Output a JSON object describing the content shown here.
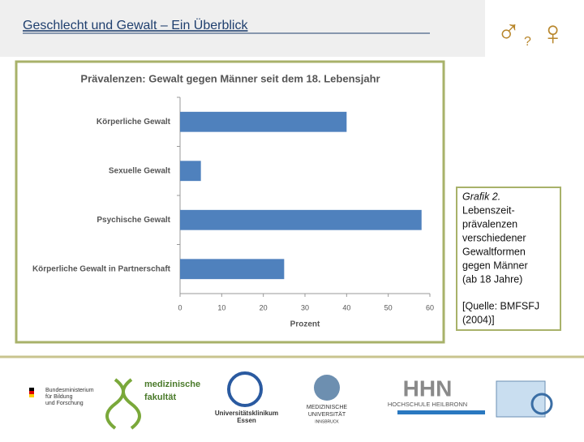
{
  "header": {
    "title": "Geschlecht und Gewalt – Ein Überblick",
    "symbol_male": "♂",
    "symbol_question": "?",
    "symbol_female": "♀"
  },
  "chart_data": {
    "type": "hbar",
    "title": "Prävalenzen: Gewalt gegen Männer seit dem 18. Lebensjahr",
    "categories": [
      "Körperliche Gewalt",
      "Sexuelle Gewalt",
      "Psychische Gewalt",
      "Körperliche Gewalt in Partnerschaft"
    ],
    "values": [
      40,
      5,
      58,
      25
    ],
    "color": "#4f81bd",
    "xlim": [
      0,
      60
    ],
    "xticks": [
      0,
      10,
      20,
      30,
      40,
      50,
      60
    ],
    "xlabel": "Prozent",
    "grid": false
  },
  "caption": {
    "lines": [
      "Grafik 2.",
      "Lebenszeit-",
      "prävalenzen",
      "verschiedener",
      "Gewaltformen",
      "gegen Männer",
      "(ab 18 Jahre)"
    ],
    "source": [
      "[Quelle: BMFSFJ",
      "(2004)]"
    ]
  },
  "logos": {
    "bmbf": [
      "Bundesministerium",
      "für Bildung",
      "und Forschung"
    ],
    "med1": "medizinische",
    "med2": "fakultät",
    "uk1": "Universitätsklinikum",
    "uk2": "Essen",
    "mui1": "MEDIZINISCHE",
    "mui2": "UNIVERSITÄT",
    "mui3": "INNSBRUCK",
    "hhn": "HHN",
    "hhn2": "HOCHSCHULE HEILBRONN"
  }
}
